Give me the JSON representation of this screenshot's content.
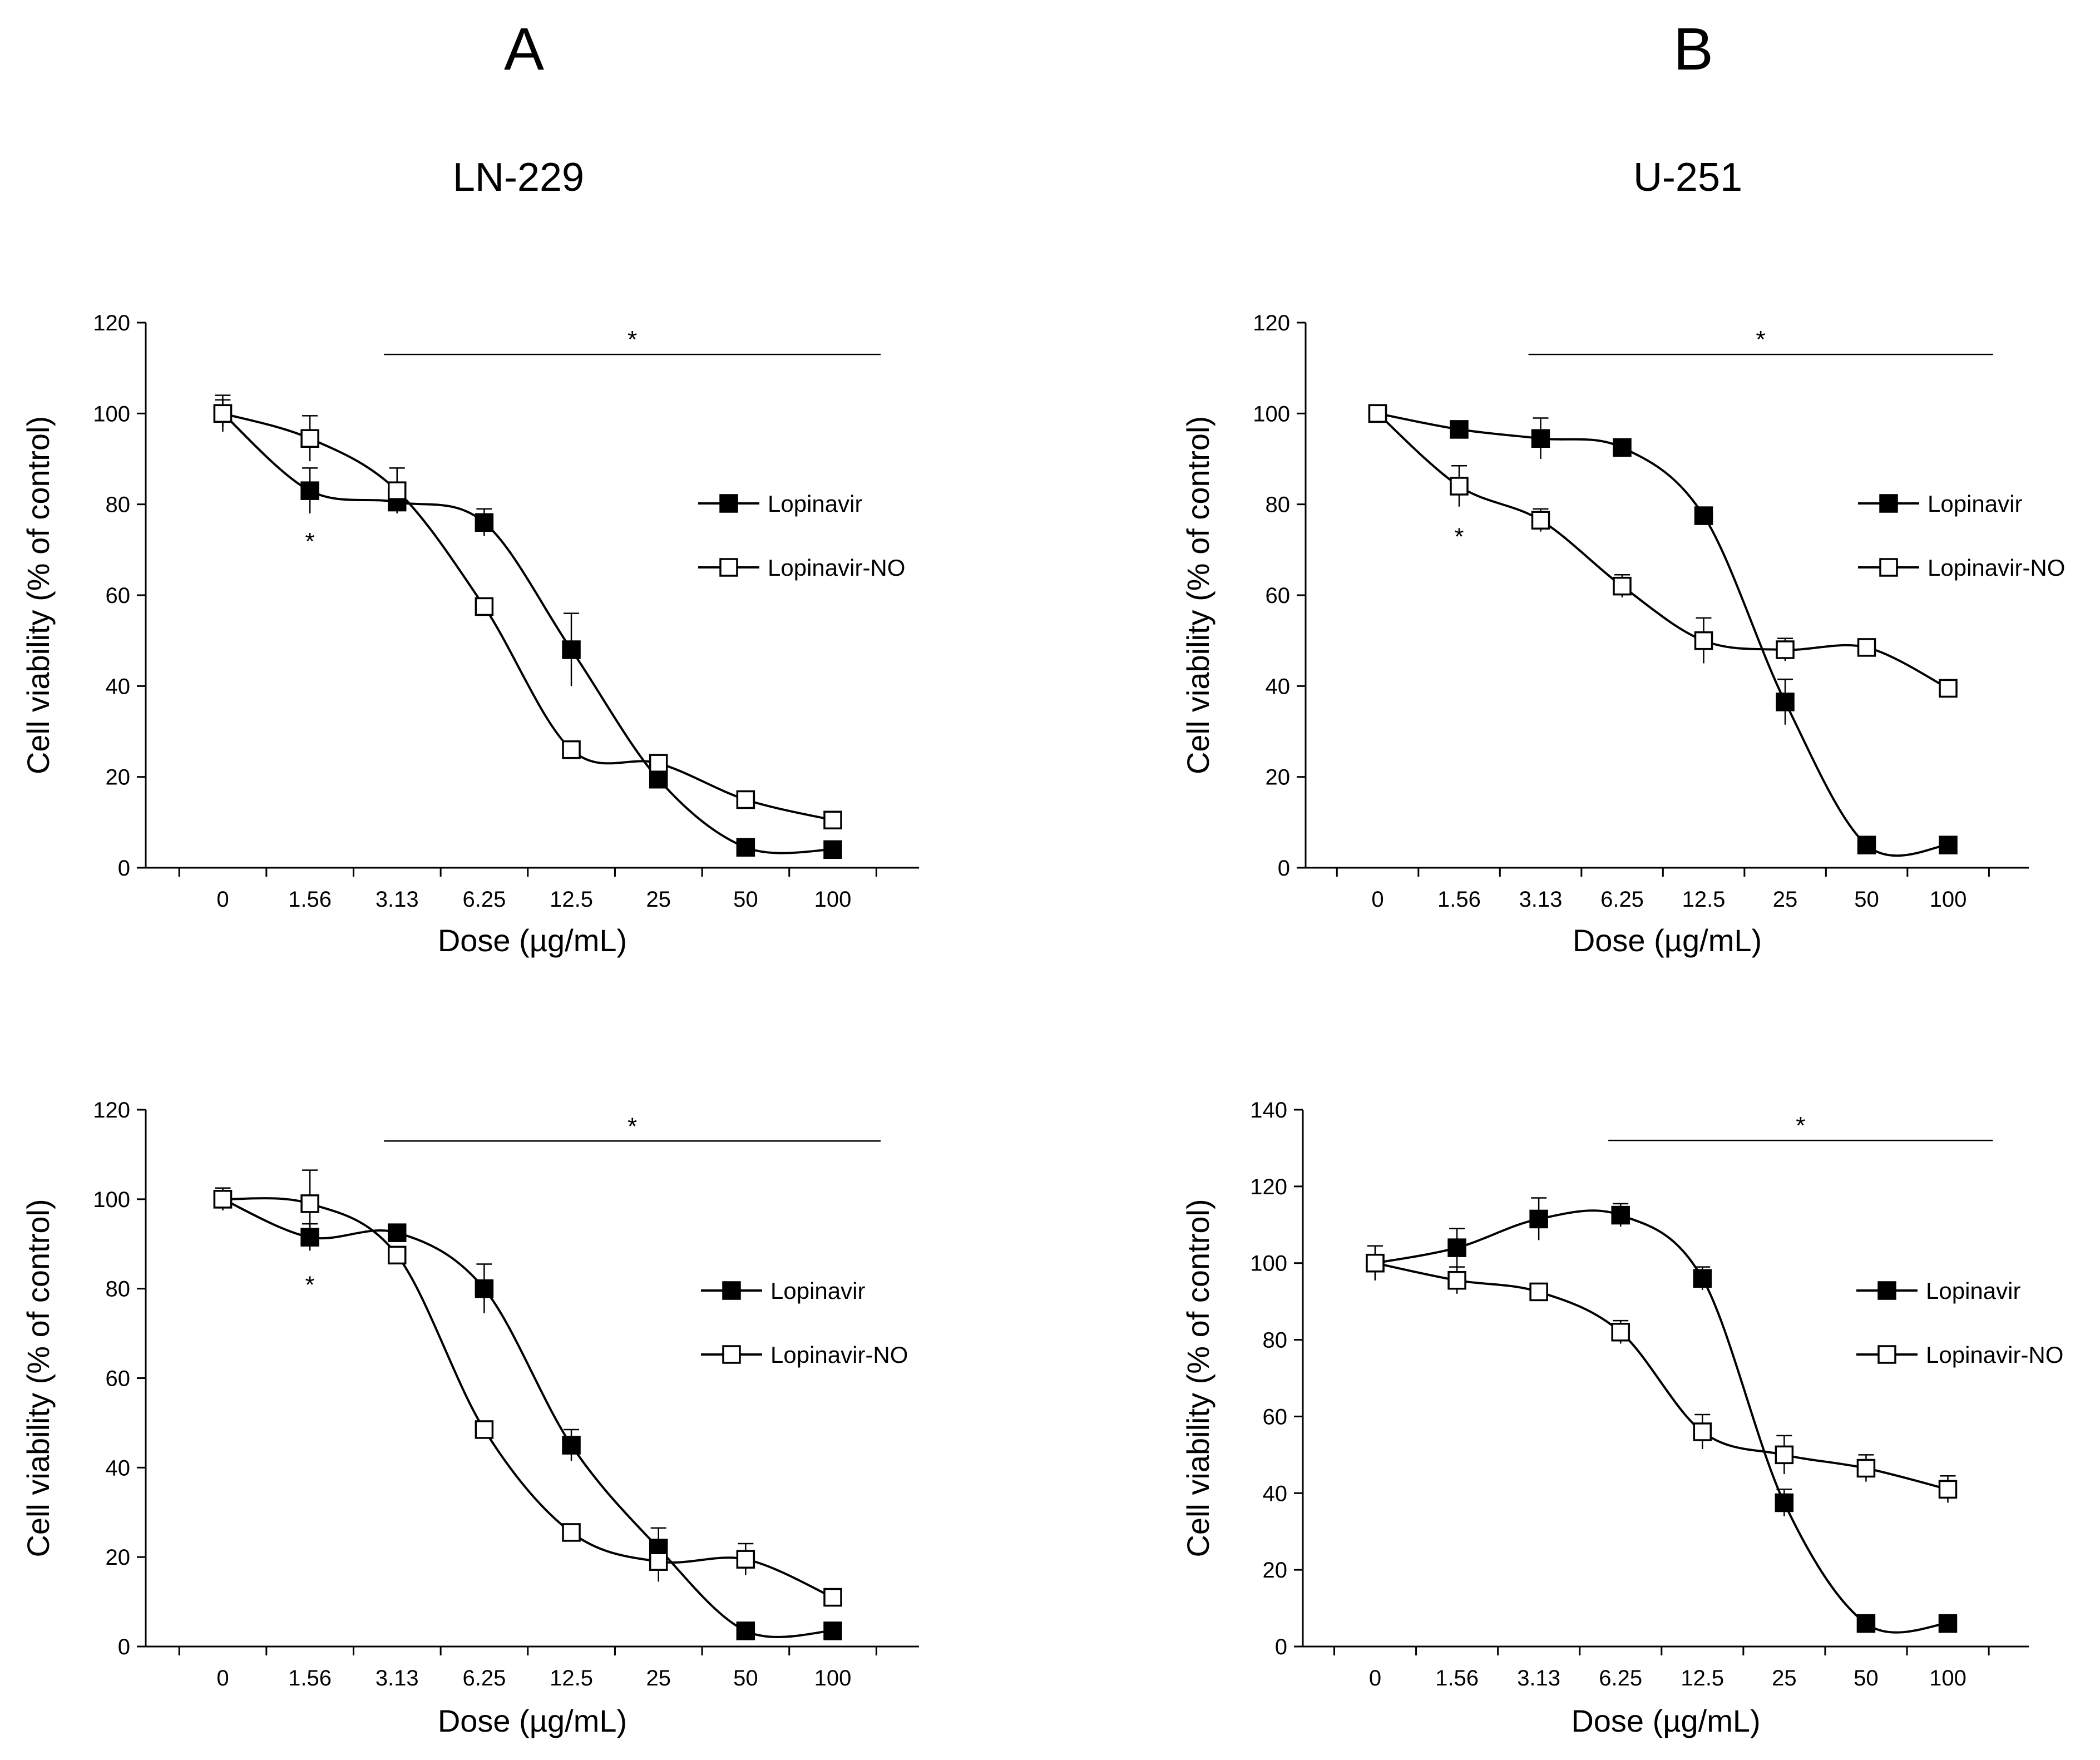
{
  "figure": {
    "panel_a": {
      "letter": "A",
      "cell_line": "LN-229"
    },
    "panel_b": {
      "letter": "B",
      "cell_line": "U-251"
    }
  },
  "chart_data": [
    {
      "id": "a-top",
      "type": "line",
      "title": "LN-229",
      "xlabel": "Dose (µg/mL)",
      "ylabel": "Cell viability (% of control)",
      "categories": [
        "0",
        "1.56",
        "3.13",
        "6.25",
        "12.5",
        "25",
        "50",
        "100"
      ],
      "ylim": [
        0,
        120
      ],
      "yticks": [
        0,
        20,
        40,
        60,
        80,
        100,
        120
      ],
      "series": [
        {
          "name": "Lopinavir",
          "marker": "filled-square",
          "values": [
            100,
            83,
            80.5,
            76,
            48,
            19.5,
            4.5,
            4
          ],
          "errors": [
            4,
            5,
            1,
            3,
            8,
            1.5,
            1,
            1
          ]
        },
        {
          "name": "Lopinavir-NO",
          "marker": "open-square",
          "values": [
            100,
            94.5,
            83,
            57.5,
            26,
            23,
            15,
            10.5
          ],
          "errors": [
            3,
            5,
            5,
            1.5,
            1.5,
            1.5,
            1,
            1
          ]
        }
      ],
      "annotations": [
        {
          "text": "*",
          "at_category": "1.56",
          "value": 73
        },
        {
          "text": "*",
          "bracket_from": "3.13",
          "bracket_to": "100",
          "value": 113
        }
      ],
      "legend_position": "right"
    },
    {
      "id": "b-top",
      "type": "line",
      "title": "U-251",
      "xlabel": "Dose (µg/mL)",
      "ylabel": "Cell viability (% of control)",
      "categories": [
        "0",
        "1.56",
        "3.13",
        "6.25",
        "12.5",
        "25",
        "50",
        "100"
      ],
      "ylim": [
        0,
        120
      ],
      "yticks": [
        0,
        20,
        40,
        60,
        80,
        100,
        120
      ],
      "series": [
        {
          "name": "Lopinavir",
          "marker": "filled-square",
          "values": [
            100,
            96.5,
            94.5,
            92.5,
            77.5,
            36.5,
            5,
            5
          ],
          "errors": [
            1,
            1,
            4.5,
            1,
            1,
            5,
            1,
            1
          ]
        },
        {
          "name": "Lopinavir-NO",
          "marker": "open-square",
          "values": [
            100,
            84,
            76.5,
            62,
            50,
            48,
            48.5,
            39.5
          ],
          "errors": [
            1,
            4.5,
            2.5,
            2.5,
            5,
            2.5,
            1,
            1
          ]
        }
      ],
      "annotations": [
        {
          "text": "*",
          "at_category": "1.56",
          "value": 74
        },
        {
          "text": "*",
          "bracket_from": "3.13",
          "bracket_to": "100",
          "value": 113
        }
      ],
      "legend_position": "right"
    },
    {
      "id": "a-bottom",
      "type": "line",
      "title": "",
      "xlabel": "Dose (µg/mL)",
      "ylabel": "Cell viability (% of control)",
      "categories": [
        "0",
        "1.56",
        "3.13",
        "6.25",
        "12.5",
        "25",
        "50",
        "100"
      ],
      "ylim": [
        0,
        120
      ],
      "yticks": [
        0,
        20,
        40,
        60,
        80,
        100,
        120
      ],
      "series": [
        {
          "name": "Lopinavir",
          "marker": "filled-square",
          "values": [
            100,
            91.5,
            92.5,
            80,
            45,
            22,
            3.5,
            3.5
          ],
          "errors": [
            2.5,
            3,
            1,
            5.5,
            3.5,
            4.5,
            1,
            1
          ]
        },
        {
          "name": "Lopinavir-NO",
          "marker": "open-square",
          "values": [
            100,
            99,
            87.5,
            48.5,
            25.5,
            19,
            19.5,
            11
          ],
          "errors": [
            2.5,
            7.5,
            1.5,
            1.5,
            1.5,
            4.5,
            3.5,
            1
          ]
        }
      ],
      "annotations": [
        {
          "text": "*",
          "at_category": "1.56",
          "value": 82
        },
        {
          "text": "*",
          "bracket_from": "3.13",
          "bracket_to": "100",
          "value": 113
        }
      ],
      "legend_position": "right"
    },
    {
      "id": "b-bottom",
      "type": "line",
      "title": "",
      "xlabel": "Dose (µg/mL)",
      "ylabel": "Cell viability (% of control)",
      "categories": [
        "0",
        "1.56",
        "3.13",
        "6.25",
        "12.5",
        "25",
        "50",
        "100"
      ],
      "ylim": [
        0,
        140
      ],
      "yticks": [
        0,
        20,
        40,
        60,
        80,
        100,
        120,
        140
      ],
      "series": [
        {
          "name": "Lopinavir",
          "marker": "filled-square",
          "values": [
            100,
            104,
            111.5,
            112.5,
            96,
            37.5,
            6,
            6
          ],
          "errors": [
            4.5,
            5,
            5.5,
            3,
            3,
            3.5,
            1,
            1
          ]
        },
        {
          "name": "Lopinavir-NO",
          "marker": "open-square",
          "values": [
            100,
            95.5,
            92.5,
            82,
            56,
            50,
            46.5,
            41
          ],
          "errors": [
            4.5,
            3.5,
            1.5,
            3,
            4.5,
            5,
            3.5,
            3.5
          ]
        }
      ],
      "annotations": [
        {
          "text": "*",
          "bracket_from": "6.25",
          "bracket_to": "100",
          "value": 132
        }
      ],
      "legend_position": "right"
    }
  ]
}
